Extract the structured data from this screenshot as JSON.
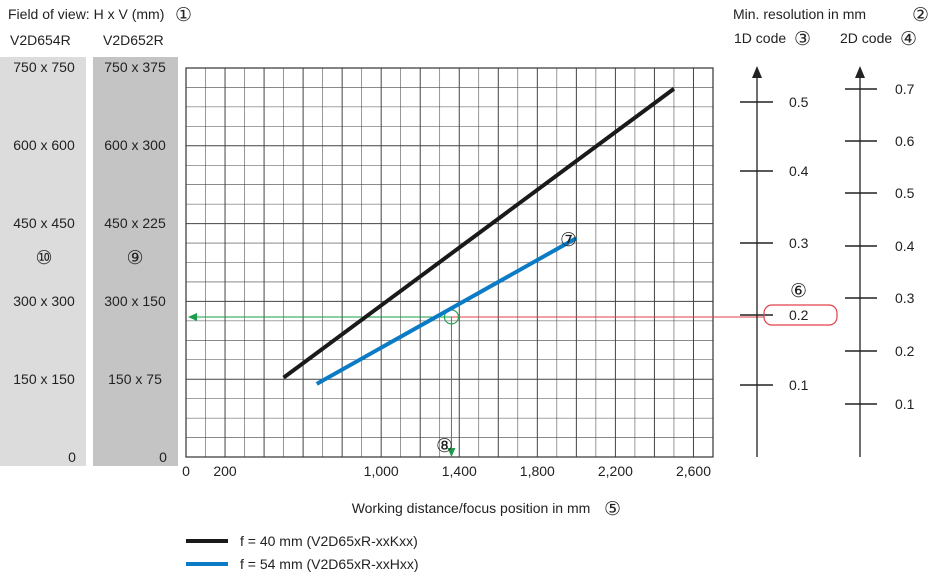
{
  "fov_header": "Field of view: H x V (mm)",
  "resolution_header": "Min. resolution in mm",
  "marker_glyphs": {
    "m1": "①",
    "m2": "②",
    "m3": "③",
    "m4": "④",
    "m5": "⑤",
    "m6": "⑥",
    "m7": "⑦",
    "m8": "⑧",
    "m9": "⑨",
    "m10": "⑩"
  },
  "columns": {
    "v654r": {
      "title": "V2D654R",
      "labels": [
        "750 x 750",
        "600 x 600",
        "450 x 450",
        "300 x 300",
        "150 x 150",
        "0"
      ],
      "fill": "#dcdcdc"
    },
    "v652r": {
      "title": "V2D652R",
      "labels": [
        "750 x 375",
        "600 x 300",
        "450 x 225",
        "300 x 150",
        "150 x 75",
        "0"
      ],
      "fill": "#c4c4c4"
    }
  },
  "scales": {
    "code1d": {
      "title": "1D code",
      "ticks": [
        "0.1",
        "0.2",
        "0.3",
        "0.4",
        "0.5"
      ]
    },
    "code2d": {
      "title": "2D code",
      "ticks": [
        "0.1",
        "0.2",
        "0.3",
        "0.4",
        "0.5",
        "0.6",
        "0.7"
      ]
    }
  },
  "colors": {
    "series_40": "#1a1a1a",
    "series_54": "#0a7bc4",
    "guide_green": "#1a9e4a",
    "guide_red": "#e0404a",
    "grid": "#444444"
  },
  "legend": [
    {
      "label": "f = 40 mm (V2D65xR-xxKxx)",
      "color": "#1a1a1a"
    },
    {
      "label": "f = 54 mm (V2D65xR-xxHxx)",
      "color": "#0a7bc4"
    }
  ],
  "chart_data": {
    "type": "line",
    "xlabel": "Working distance/focus position in mm",
    "xlim": [
      0,
      2700
    ],
    "xticks": [
      0,
      200,
      1000,
      1400,
      1800,
      2200,
      2600
    ],
    "xtick_labels": [
      "0",
      "200",
      "1,000",
      "1,400",
      "1,800",
      "2,200",
      "2,600"
    ],
    "ylim": [
      0,
      750
    ],
    "series": [
      {
        "name": "f = 40 mm (V2D65xR-xxKxx)",
        "x": [
          500,
          2500
        ],
        "y": [
          153,
          710
        ]
      },
      {
        "name": "f = 54 mm (V2D65xR-xxHxx)",
        "x": [
          670,
          2000
        ],
        "y": [
          141,
          422
        ]
      }
    ],
    "example": {
      "x": 1360,
      "y": 270,
      "resolution_1d": "0.2"
    }
  }
}
